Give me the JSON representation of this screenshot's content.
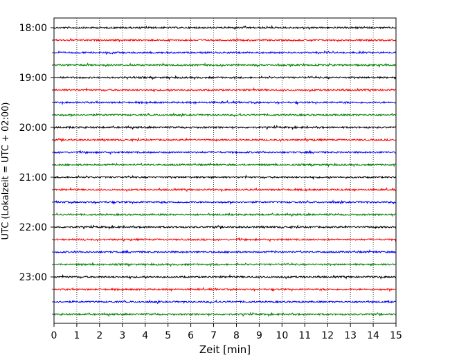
{
  "chart_data": {
    "type": "line",
    "title": "",
    "xlabel": "Zeit  [min]",
    "ylabel": "UTC (Lokalzeit = UTC + 02:00)",
    "xlim": [
      0,
      15
    ],
    "x_ticks": [
      "0",
      "1",
      "2",
      "3",
      "4",
      "5",
      "6",
      "7",
      "8",
      "9",
      "10",
      "11",
      "12",
      "13",
      "14",
      "15"
    ],
    "y_ticks": [
      "18:00",
      "19:00",
      "20:00",
      "21:00",
      "22:00",
      "23:00"
    ],
    "trace_colors": [
      "#000000",
      "#ff0000",
      "#0000ff",
      "#008000"
    ],
    "traces": [
      {
        "start": "18:00",
        "color": "#000000"
      },
      {
        "start": "18:15",
        "color": "#ff0000"
      },
      {
        "start": "18:30",
        "color": "#0000ff"
      },
      {
        "start": "18:45",
        "color": "#008000"
      },
      {
        "start": "19:00",
        "color": "#000000"
      },
      {
        "start": "19:15",
        "color": "#ff0000"
      },
      {
        "start": "19:30",
        "color": "#0000ff"
      },
      {
        "start": "19:45",
        "color": "#008000"
      },
      {
        "start": "20:00",
        "color": "#000000"
      },
      {
        "start": "20:15",
        "color": "#ff0000"
      },
      {
        "start": "20:30",
        "color": "#0000ff"
      },
      {
        "start": "20:45",
        "color": "#008000"
      },
      {
        "start": "21:00",
        "color": "#000000"
      },
      {
        "start": "21:15",
        "color": "#ff0000"
      },
      {
        "start": "21:30",
        "color": "#0000ff"
      },
      {
        "start": "21:45",
        "color": "#008000"
      },
      {
        "start": "22:00",
        "color": "#000000"
      },
      {
        "start": "22:15",
        "color": "#ff0000"
      },
      {
        "start": "22:30",
        "color": "#0000ff"
      },
      {
        "start": "22:45",
        "color": "#008000"
      },
      {
        "start": "23:00",
        "color": "#000000"
      },
      {
        "start": "23:15",
        "color": "#ff0000"
      },
      {
        "start": "23:30",
        "color": "#0000ff"
      },
      {
        "start": "23:45",
        "color": "#008000"
      }
    ],
    "grid": {
      "x": "dotted-vertical",
      "y": false
    },
    "legend": "none"
  }
}
